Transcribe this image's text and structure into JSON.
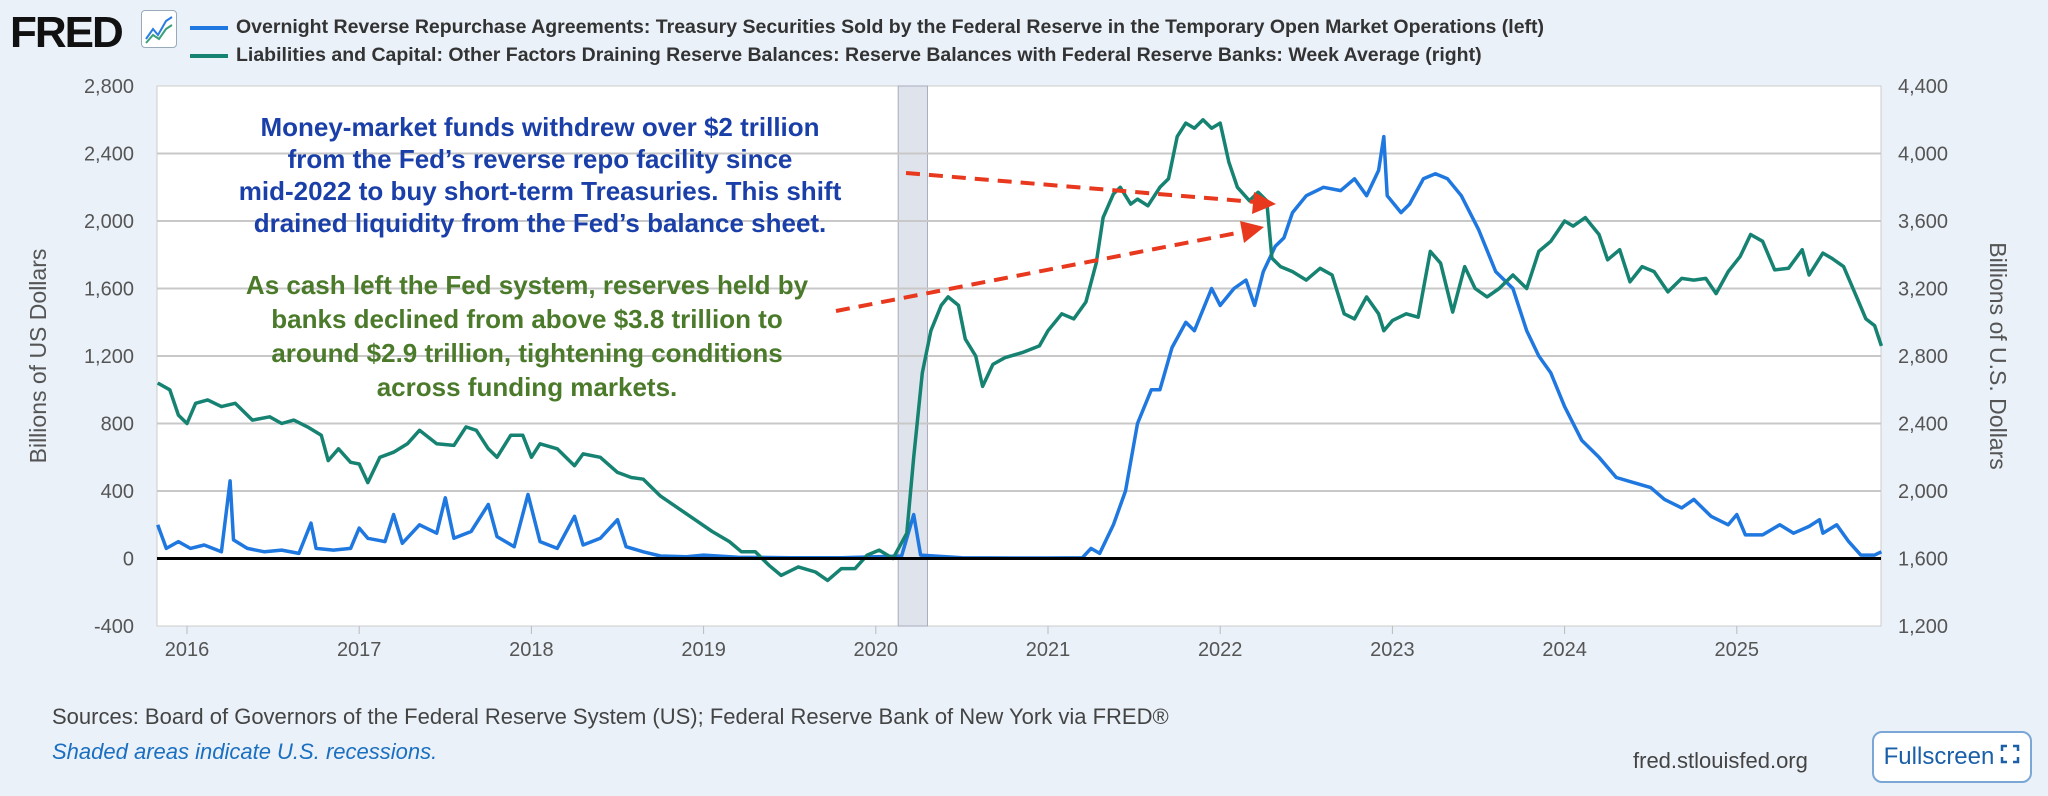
{
  "header": {
    "logo_text": "FRED",
    "legend": [
      {
        "label": "Overnight Reverse Repurchase Agreements: Treasury Securities Sold by the Federal Reserve in the Temporary Open Market Operations (left)",
        "color": "#1f77e0"
      },
      {
        "label": "Liabilities and Capital: Other Factors Draining Reserve Balances: Reserve Balances with Federal Reserve Banks: Week Average (right)",
        "color": "#168272"
      }
    ]
  },
  "annotations": {
    "blue_text": [
      "Money-market funds withdrew over $2 trillion",
      "from the Fed’s reverse repo facility since",
      "mid-2022 to buy short-term Treasuries. This shift",
      "drained liquidity from the Fed’s balance sheet."
    ],
    "green_text": [
      "As cash left the Fed system, reserves held by",
      "banks declined from above $3.8 trillion to",
      "around $2.9 trillion, tightening conditions",
      "across funding markets."
    ],
    "blue_color": "#1a3fa8",
    "green_color": "#4a7a2a",
    "arrow_color": "#e8381e"
  },
  "chart_data": {
    "type": "line",
    "ylabel": "Billions of US Dollars",
    "y2label": "Billions of U.S. Dollars",
    "xlabel": "",
    "xlim": [
      2015.83,
      2025.84
    ],
    "ylim": [
      -400,
      2800
    ],
    "y2lim": [
      1200,
      4400
    ],
    "x_ticks": [
      "2016",
      "2017",
      "2018",
      "2019",
      "2020",
      "2021",
      "2022",
      "2023",
      "2024",
      "2025"
    ],
    "y_ticks": [
      "2,800",
      "2,400",
      "2,000",
      "1,600",
      "1,200",
      "800",
      "400",
      "0",
      "-400"
    ],
    "y2_ticks": [
      "4,400",
      "4,000",
      "3,600",
      "3,200",
      "2,800",
      "2,400",
      "2,000",
      "1,600",
      "1,200"
    ],
    "grid": true,
    "recessions": [
      [
        2020.13,
        2020.3
      ]
    ],
    "series": [
      {
        "name": "Overnight Reverse Repurchase Agreements (left)",
        "axis": "left",
        "color": "#1f77e0",
        "points": [
          [
            2015.83,
            200
          ],
          [
            2015.88,
            60
          ],
          [
            2015.95,
            100
          ],
          [
            2016.02,
            60
          ],
          [
            2016.1,
            80
          ],
          [
            2016.2,
            40
          ],
          [
            2016.25,
            460
          ],
          [
            2016.27,
            110
          ],
          [
            2016.35,
            60
          ],
          [
            2016.45,
            40
          ],
          [
            2016.55,
            50
          ],
          [
            2016.65,
            30
          ],
          [
            2016.72,
            210
          ],
          [
            2016.75,
            60
          ],
          [
            2016.85,
            50
          ],
          [
            2016.95,
            60
          ],
          [
            2017.0,
            180
          ],
          [
            2017.05,
            120
          ],
          [
            2017.15,
            100
          ],
          [
            2017.2,
            260
          ],
          [
            2017.25,
            90
          ],
          [
            2017.35,
            200
          ],
          [
            2017.45,
            150
          ],
          [
            2017.5,
            360
          ],
          [
            2017.55,
            120
          ],
          [
            2017.65,
            160
          ],
          [
            2017.75,
            320
          ],
          [
            2017.8,
            130
          ],
          [
            2017.9,
            70
          ],
          [
            2017.98,
            380
          ],
          [
            2018.05,
            100
          ],
          [
            2018.15,
            60
          ],
          [
            2018.25,
            250
          ],
          [
            2018.3,
            80
          ],
          [
            2018.4,
            120
          ],
          [
            2018.5,
            230
          ],
          [
            2018.55,
            70
          ],
          [
            2018.65,
            40
          ],
          [
            2018.75,
            15
          ],
          [
            2018.9,
            10
          ],
          [
            2019.0,
            20
          ],
          [
            2019.2,
            8
          ],
          [
            2019.5,
            5
          ],
          [
            2019.8,
            5
          ],
          [
            2020.0,
            10
          ],
          [
            2020.15,
            15
          ],
          [
            2020.22,
            260
          ],
          [
            2020.26,
            20
          ],
          [
            2020.5,
            5
          ],
          [
            2020.8,
            3
          ],
          [
            2021.0,
            3
          ],
          [
            2021.2,
            5
          ],
          [
            2021.25,
            60
          ],
          [
            2021.3,
            30
          ],
          [
            2021.38,
            200
          ],
          [
            2021.45,
            400
          ],
          [
            2021.52,
            800
          ],
          [
            2021.6,
            1000
          ],
          [
            2021.65,
            1000
          ],
          [
            2021.72,
            1250
          ],
          [
            2021.8,
            1400
          ],
          [
            2021.85,
            1350
          ],
          [
            2021.95,
            1600
          ],
          [
            2022.0,
            1500
          ],
          [
            2022.08,
            1600
          ],
          [
            2022.15,
            1650
          ],
          [
            2022.2,
            1500
          ],
          [
            2022.25,
            1700
          ],
          [
            2022.32,
            1850
          ],
          [
            2022.37,
            1900
          ],
          [
            2022.42,
            2050
          ],
          [
            2022.5,
            2150
          ],
          [
            2022.6,
            2200
          ],
          [
            2022.7,
            2180
          ],
          [
            2022.78,
            2250
          ],
          [
            2022.85,
            2150
          ],
          [
            2022.92,
            2300
          ],
          [
            2022.95,
            2500
          ],
          [
            2022.97,
            2150
          ],
          [
            2023.05,
            2050
          ],
          [
            2023.1,
            2100
          ],
          [
            2023.18,
            2250
          ],
          [
            2023.25,
            2280
          ],
          [
            2023.32,
            2250
          ],
          [
            2023.4,
            2150
          ],
          [
            2023.5,
            1950
          ],
          [
            2023.6,
            1700
          ],
          [
            2023.7,
            1600
          ],
          [
            2023.78,
            1350
          ],
          [
            2023.85,
            1200
          ],
          [
            2023.92,
            1100
          ],
          [
            2024.0,
            900
          ],
          [
            2024.1,
            700
          ],
          [
            2024.2,
            600
          ],
          [
            2024.3,
            480
          ],
          [
            2024.4,
            450
          ],
          [
            2024.5,
            420
          ],
          [
            2024.58,
            350
          ],
          [
            2024.68,
            300
          ],
          [
            2024.75,
            350
          ],
          [
            2024.85,
            250
          ],
          [
            2024.95,
            200
          ],
          [
            2025.0,
            260
          ],
          [
            2025.05,
            140
          ],
          [
            2025.15,
            140
          ],
          [
            2025.25,
            200
          ],
          [
            2025.33,
            150
          ],
          [
            2025.42,
            190
          ],
          [
            2025.48,
            230
          ],
          [
            2025.5,
            150
          ],
          [
            2025.58,
            200
          ],
          [
            2025.65,
            100
          ],
          [
            2025.72,
            20
          ],
          [
            2025.8,
            20
          ],
          [
            2025.84,
            40
          ]
        ]
      },
      {
        "name": "Reserve Balances with Federal Reserve Banks (right)",
        "axis": "right",
        "color": "#168272",
        "points": [
          [
            2015.83,
            2640
          ],
          [
            2015.9,
            2600
          ],
          [
            2015.95,
            2450
          ],
          [
            2016.0,
            2400
          ],
          [
            2016.05,
            2520
          ],
          [
            2016.12,
            2540
          ],
          [
            2016.2,
            2500
          ],
          [
            2016.28,
            2520
          ],
          [
            2016.38,
            2420
          ],
          [
            2016.48,
            2440
          ],
          [
            2016.55,
            2400
          ],
          [
            2016.62,
            2420
          ],
          [
            2016.7,
            2380
          ],
          [
            2016.78,
            2330
          ],
          [
            2016.82,
            2180
          ],
          [
            2016.88,
            2250
          ],
          [
            2016.95,
            2170
          ],
          [
            2017.0,
            2160
          ],
          [
            2017.05,
            2050
          ],
          [
            2017.12,
            2200
          ],
          [
            2017.2,
            2230
          ],
          [
            2017.28,
            2280
          ],
          [
            2017.35,
            2360
          ],
          [
            2017.45,
            2280
          ],
          [
            2017.55,
            2270
          ],
          [
            2017.62,
            2380
          ],
          [
            2017.68,
            2360
          ],
          [
            2017.75,
            2250
          ],
          [
            2017.8,
            2200
          ],
          [
            2017.88,
            2330
          ],
          [
            2017.95,
            2330
          ],
          [
            2018.0,
            2200
          ],
          [
            2018.05,
            2280
          ],
          [
            2018.15,
            2250
          ],
          [
            2018.25,
            2150
          ],
          [
            2018.3,
            2220
          ],
          [
            2018.4,
            2200
          ],
          [
            2018.5,
            2110
          ],
          [
            2018.58,
            2080
          ],
          [
            2018.65,
            2070
          ],
          [
            2018.75,
            1970
          ],
          [
            2018.85,
            1900
          ],
          [
            2018.95,
            1830
          ],
          [
            2019.05,
            1760
          ],
          [
            2019.15,
            1700
          ],
          [
            2019.22,
            1640
          ],
          [
            2019.3,
            1640
          ],
          [
            2019.38,
            1560
          ],
          [
            2019.45,
            1500
          ],
          [
            2019.55,
            1550
          ],
          [
            2019.65,
            1520
          ],
          [
            2019.72,
            1470
          ],
          [
            2019.8,
            1540
          ],
          [
            2019.88,
            1540
          ],
          [
            2019.95,
            1620
          ],
          [
            2020.02,
            1650
          ],
          [
            2020.1,
            1600
          ],
          [
            2020.18,
            1750
          ],
          [
            2020.22,
            2200
          ],
          [
            2020.27,
            2700
          ],
          [
            2020.32,
            2950
          ],
          [
            2020.38,
            3100
          ],
          [
            2020.42,
            3150
          ],
          [
            2020.48,
            3100
          ],
          [
            2020.52,
            2900
          ],
          [
            2020.58,
            2800
          ],
          [
            2020.62,
            2620
          ],
          [
            2020.68,
            2750
          ],
          [
            2020.75,
            2790
          ],
          [
            2020.85,
            2820
          ],
          [
            2020.95,
            2860
          ],
          [
            2021.0,
            2950
          ],
          [
            2021.08,
            3050
          ],
          [
            2021.15,
            3020
          ],
          [
            2021.22,
            3120
          ],
          [
            2021.28,
            3350
          ],
          [
            2021.32,
            3620
          ],
          [
            2021.38,
            3760
          ],
          [
            2021.42,
            3800
          ],
          [
            2021.48,
            3700
          ],
          [
            2021.52,
            3730
          ],
          [
            2021.58,
            3690
          ],
          [
            2021.65,
            3800
          ],
          [
            2021.7,
            3850
          ],
          [
            2021.75,
            4100
          ],
          [
            2021.8,
            4180
          ],
          [
            2021.85,
            4150
          ],
          [
            2021.9,
            4200
          ],
          [
            2021.95,
            4150
          ],
          [
            2022.0,
            4180
          ],
          [
            2022.05,
            3950
          ],
          [
            2022.1,
            3800
          ],
          [
            2022.17,
            3720
          ],
          [
            2022.22,
            3770
          ],
          [
            2022.27,
            3720
          ],
          [
            2022.3,
            3380
          ],
          [
            2022.35,
            3330
          ],
          [
            2022.42,
            3300
          ],
          [
            2022.5,
            3250
          ],
          [
            2022.58,
            3320
          ],
          [
            2022.65,
            3280
          ],
          [
            2022.72,
            3050
          ],
          [
            2022.78,
            3020
          ],
          [
            2022.85,
            3150
          ],
          [
            2022.92,
            3050
          ],
          [
            2022.95,
            2950
          ],
          [
            2023.0,
            3010
          ],
          [
            2023.08,
            3050
          ],
          [
            2023.15,
            3030
          ],
          [
            2023.22,
            3420
          ],
          [
            2023.28,
            3350
          ],
          [
            2023.35,
            3060
          ],
          [
            2023.42,
            3330
          ],
          [
            2023.48,
            3200
          ],
          [
            2023.55,
            3150
          ],
          [
            2023.62,
            3200
          ],
          [
            2023.7,
            3280
          ],
          [
            2023.78,
            3200
          ],
          [
            2023.85,
            3420
          ],
          [
            2023.92,
            3480
          ],
          [
            2024.0,
            3600
          ],
          [
            2024.05,
            3570
          ],
          [
            2024.12,
            3620
          ],
          [
            2024.2,
            3520
          ],
          [
            2024.25,
            3370
          ],
          [
            2024.32,
            3430
          ],
          [
            2024.38,
            3240
          ],
          [
            2024.45,
            3330
          ],
          [
            2024.52,
            3300
          ],
          [
            2024.6,
            3180
          ],
          [
            2024.68,
            3260
          ],
          [
            2024.75,
            3250
          ],
          [
            2024.82,
            3260
          ],
          [
            2024.88,
            3170
          ],
          [
            2024.95,
            3300
          ],
          [
            2025.02,
            3390
          ],
          [
            2025.08,
            3520
          ],
          [
            2025.15,
            3480
          ],
          [
            2025.22,
            3310
          ],
          [
            2025.3,
            3320
          ],
          [
            2025.38,
            3430
          ],
          [
            2025.42,
            3280
          ],
          [
            2025.5,
            3410
          ],
          [
            2025.55,
            3380
          ],
          [
            2025.62,
            3330
          ],
          [
            2025.7,
            3140
          ],
          [
            2025.75,
            3020
          ],
          [
            2025.8,
            2980
          ],
          [
            2025.84,
            2860
          ]
        ]
      }
    ]
  },
  "footer": {
    "sources": "Sources: Board of Governors of the Federal Reserve System (US); Federal Reserve Bank of New York via FRED®",
    "recession_note": "Shaded areas indicate U.S. recessions.",
    "site": "fred.stlouisfed.org",
    "fullscreen_label": "Fullscreen"
  }
}
